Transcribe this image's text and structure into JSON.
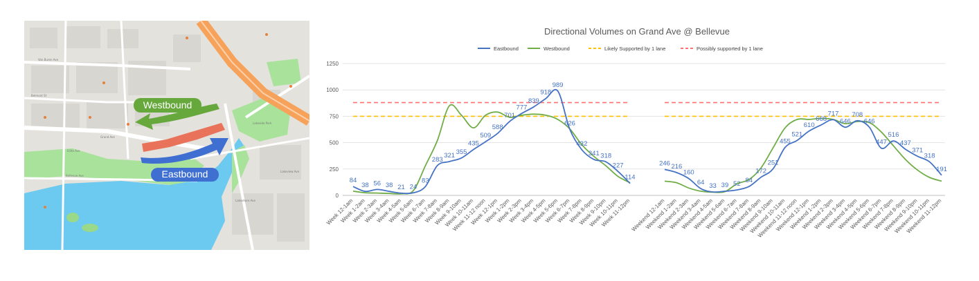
{
  "map": {
    "westbound_label": "Westbound",
    "eastbound_label": "Eastbound",
    "streets": [
      "Van Buren Ave",
      "Grand Ave",
      "Bellevue Ave",
      "Belmont St",
      "Lakeshore Ave",
      "Lakeside Park",
      "Ellita Ave",
      "Lakeview Ave"
    ],
    "colors": {
      "water": "#6cc9ef",
      "park": "#a8e29b",
      "road": "#ffffff",
      "freeway": "#f7a25a",
      "westbound": "#66a83c",
      "eastbound": "#3f6fd1",
      "approach": "#e8735a"
    }
  },
  "chart_data": {
    "type": "line",
    "title": "Directional Volumes on Grand Ave @ Bellevue",
    "xlabel": "",
    "ylabel": "",
    "ylim": [
      0,
      1250
    ],
    "yticks": [
      0,
      250,
      500,
      750,
      1000,
      1250
    ],
    "grid": true,
    "legend_position": "top",
    "groups": [
      {
        "categories": [
          "Week 12-1am",
          "Week 1-2am",
          "Week 2-3am",
          "Week 3-4am",
          "Week 4-5am",
          "Week 5-6am",
          "Week 6-7am",
          "Week 7-8am",
          "Week 8-9am",
          "Week 9-10am",
          "Week 10-11am",
          "Week 11-12 noon",
          "Week 12-1pm",
          "Week 1-2pm",
          "Week 2-3pm",
          "Week 3-4pm",
          "Week 4-5pm",
          "Week 5-6pm",
          "Week 6-7pm",
          "Week 7-8pm",
          "Week 8-9pm",
          "Week 9-10pm",
          "Week 10-11pm",
          "Week 11-12pm"
        ],
        "eastbound": [
          84,
          38,
          56,
          38,
          21,
          24,
          83,
          283,
          321,
          355,
          435,
          509,
          588,
          701,
          777,
          839,
          918,
          989,
          626,
          432,
          341,
          318,
          227,
          114
        ],
        "westbound": [
          40,
          25,
          22,
          18,
          15,
          45,
          280,
          520,
          850,
          760,
          640,
          760,
          790,
          740,
          760,
          770,
          760,
          720,
          630,
          480,
          370,
          280,
          180,
          120
        ]
      },
      {
        "categories": [
          "Weekend 12-1am",
          "Weekend 1-2am",
          "Weekend 2-3am",
          "Weekend 3-4am",
          "Weekend 4-5am",
          "Weekend 5-6am",
          "Weekend 6-7am",
          "Weekend 7-8am",
          "Weekend 8-9am",
          "Weekend 9-10am",
          "Weekend 10-11am",
          "Weekend 11-12 noon",
          "Weekend 12-1pm",
          "Weekend 1-2pm",
          "Weekend 2-3pm",
          "Weekend 3-4pm",
          "Weekend 4-5pm",
          "Weekend 5-6pm",
          "Weekend 6-7pm",
          "Weekend 7-8pm",
          "Weekend 8-9pm",
          "Weekend 9-10pm",
          "Weekend 10-11pm",
          "Weekend 11-12pm"
        ],
        "eastbound": [
          246,
          216,
          160,
          64,
          33,
          39,
          52,
          84,
          172,
          251,
          455,
          521,
          610,
          668,
          717,
          646,
          708,
          646,
          447,
          516,
          437,
          371,
          318,
          191
        ],
        "westbound": [
          135,
          120,
          70,
          40,
          30,
          35,
          110,
          150,
          260,
          450,
          640,
          720,
          720,
          730,
          720,
          680,
          700,
          690,
          600,
          470,
          340,
          240,
          170,
          135
        ]
      }
    ],
    "series": [
      {
        "name": "Eastbound",
        "color": "#4472c4"
      },
      {
        "name": "Westbound",
        "color": "#70ad47"
      }
    ],
    "thresholds": [
      {
        "name": "Likely Supported by 1 lane",
        "value": 750,
        "color": "#ffc000"
      },
      {
        "name": "Possibly supported by 1 lane",
        "value": 880,
        "color": "#ff7070"
      }
    ],
    "data_label_series": "Eastbound"
  }
}
